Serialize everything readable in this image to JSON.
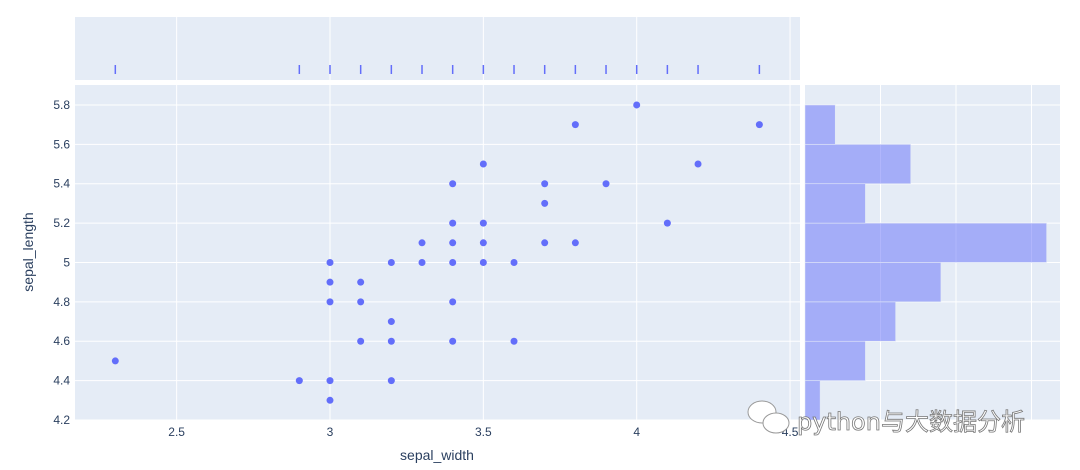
{
  "chart_data": {
    "type": "scatter",
    "xlabel": "sepal_width",
    "ylabel": "sepal_length",
    "xlim": [
      2.17,
      4.53
    ],
    "ylim": [
      4.2,
      5.9
    ],
    "x_ticks": [
      "2.5",
      "3",
      "3.5",
      "4",
      "4.5"
    ],
    "x_tick_values": [
      2.5,
      3,
      3.5,
      4,
      4.5
    ],
    "y_ticks": [
      "4.2",
      "4.4",
      "4.6",
      "4.8",
      "5",
      "5.2",
      "5.4",
      "5.6",
      "5.8"
    ],
    "y_tick_values": [
      4.2,
      4.4,
      4.6,
      4.8,
      5.0,
      5.2,
      5.4,
      5.6,
      5.8
    ],
    "grid": true,
    "marker_color": "#636efa",
    "background_color": "#e5ecf6",
    "points": [
      [
        2.3,
        4.5
      ],
      [
        2.9,
        4.4
      ],
      [
        3.0,
        4.4
      ],
      [
        3.0,
        4.3
      ],
      [
        3.0,
        4.8
      ],
      [
        3.0,
        4.9
      ],
      [
        3.0,
        5.0
      ],
      [
        3.1,
        4.9
      ],
      [
        3.1,
        4.8
      ],
      [
        3.1,
        4.6
      ],
      [
        3.2,
        4.4
      ],
      [
        3.2,
        4.6
      ],
      [
        3.2,
        4.7
      ],
      [
        3.2,
        5.0
      ],
      [
        3.3,
        5.0
      ],
      [
        3.3,
        5.1
      ],
      [
        3.4,
        4.6
      ],
      [
        3.4,
        4.8
      ],
      [
        3.4,
        5.0
      ],
      [
        3.4,
        5.1
      ],
      [
        3.4,
        5.2
      ],
      [
        3.4,
        5.4
      ],
      [
        3.5,
        5.0
      ],
      [
        3.5,
        5.1
      ],
      [
        3.5,
        5.2
      ],
      [
        3.5,
        5.5
      ],
      [
        3.6,
        5.0
      ],
      [
        3.6,
        4.6
      ],
      [
        3.7,
        5.1
      ],
      [
        3.7,
        5.3
      ],
      [
        3.7,
        5.4
      ],
      [
        3.8,
        5.1
      ],
      [
        3.8,
        5.7
      ],
      [
        3.9,
        5.4
      ],
      [
        4.0,
        5.8
      ],
      [
        4.1,
        5.2
      ],
      [
        4.2,
        5.5
      ],
      [
        4.4,
        5.7
      ]
    ],
    "marginal_x": {
      "type": "rug",
      "values": [
        2.3,
        2.9,
        3.0,
        3.1,
        3.2,
        3.3,
        3.4,
        3.5,
        3.6,
        3.7,
        3.8,
        3.9,
        4.0,
        4.1,
        4.2,
        4.4
      ]
    },
    "marginal_y": {
      "type": "histogram",
      "bin_edges": [
        4.2,
        4.4,
        4.6,
        4.8,
        5.0,
        5.2,
        5.4,
        5.6,
        5.8
      ],
      "counts": [
        1,
        4,
        6,
        9,
        16,
        4,
        7,
        2
      ],
      "count_gridlines": [
        5,
        10,
        15
      ]
    }
  },
  "watermark": "python与大数据分析"
}
